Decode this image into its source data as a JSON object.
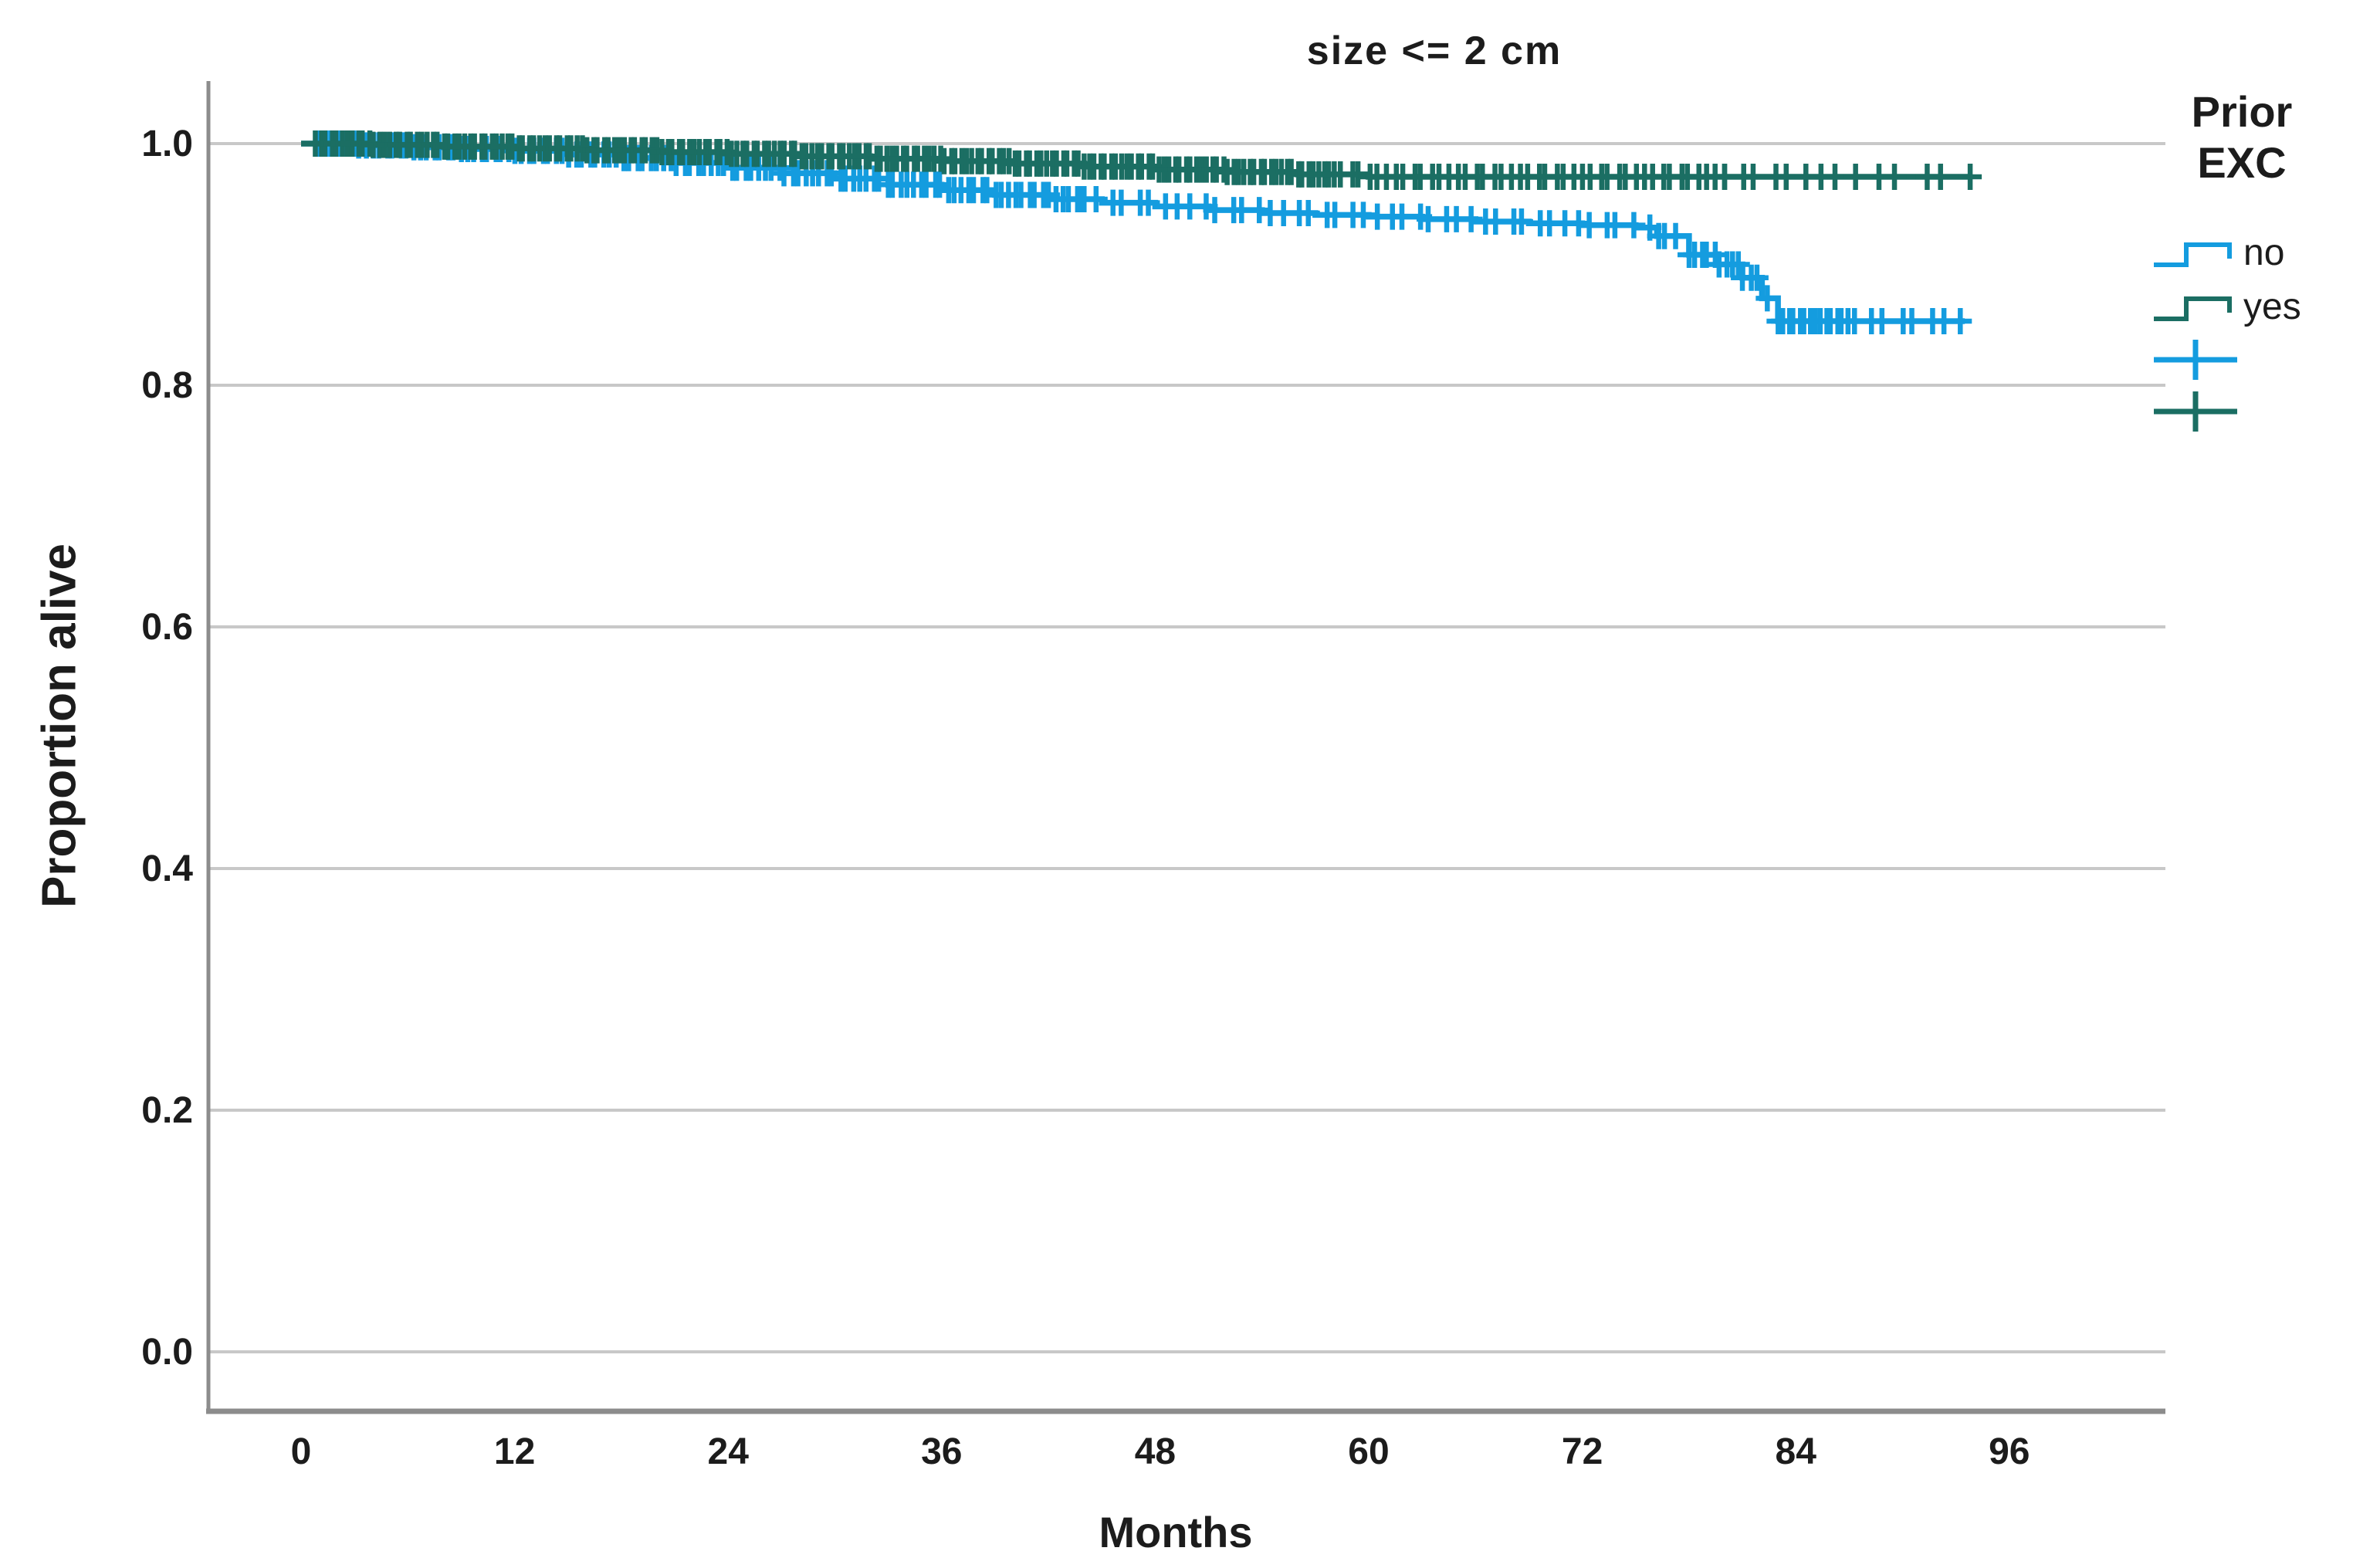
{
  "chart_data": {
    "type": "line",
    "subtype": "kaplan-meier-step-survival",
    "title": "size <= 2 cm",
    "xlabel": "Months",
    "ylabel": "Proportion alive",
    "xticks": [
      0,
      12,
      24,
      36,
      48,
      60,
      72,
      84,
      96
    ],
    "yticks": [
      "1.0",
      "0.8",
      "0.6",
      "0.4",
      "0.2",
      "0.0"
    ],
    "xlim": [
      -5,
      104
    ],
    "ylim": [
      -0.05,
      1.05
    ],
    "grid": "horizontal",
    "colors": {
      "gridline": "#c8c8c8",
      "axis": "#8c8c8c",
      "text": "#1c1c1c"
    },
    "legend": {
      "title": "Prior EXC",
      "position": "right",
      "entries": [
        {
          "label": "no",
          "color": "#149CDF"
        },
        {
          "label": "yes",
          "color": "#1B6E63"
        }
      ],
      "censored_marker": "plus"
    },
    "series": [
      {
        "name": "no",
        "color": "#149CDF",
        "end_time": 93.5,
        "steps": [
          [
            0,
            1.0
          ],
          [
            3,
            0.9985
          ],
          [
            6,
            0.997
          ],
          [
            9,
            0.9955
          ],
          [
            12,
            0.994
          ],
          [
            15,
            0.991
          ],
          [
            18,
            0.988
          ],
          [
            21,
            0.984
          ],
          [
            24,
            0.98
          ],
          [
            27,
            0.9755
          ],
          [
            30,
            0.971
          ],
          [
            33,
            0.966
          ],
          [
            36,
            0.9615
          ],
          [
            39,
            0.9575
          ],
          [
            42,
            0.954
          ],
          [
            45,
            0.951
          ],
          [
            48,
            0.948
          ],
          [
            51,
            0.945
          ],
          [
            54,
            0.9425
          ],
          [
            57,
            0.941
          ],
          [
            60,
            0.9395
          ],
          [
            63,
            0.9375
          ],
          [
            66,
            0.9355
          ],
          [
            69,
            0.934
          ],
          [
            72,
            0.9325
          ],
          [
            75,
            0.9305
          ],
          [
            76.2,
            0.9235
          ],
          [
            78,
            0.908
          ],
          [
            79.6,
            0.9
          ],
          [
            81,
            0.889
          ],
          [
            82.1,
            0.872
          ],
          [
            83,
            0.853
          ]
        ],
        "censor_clusters": [
          [
            1,
            44,
            0.38
          ],
          [
            44,
            75,
            0.75
          ],
          [
            75.8,
            77.4,
            0.45
          ],
          [
            78,
            81,
            0.35
          ],
          [
            81,
            82.4,
            0.45
          ],
          [
            83,
            87,
            0.3
          ],
          [
            87.3,
            93.5,
            0.85
          ]
        ]
      },
      {
        "name": "yes",
        "color": "#1B6E63",
        "end_time": 93.8,
        "steps": [
          [
            0,
            1.0
          ],
          [
            4,
            0.999
          ],
          [
            8,
            0.9975
          ],
          [
            12,
            0.996
          ],
          [
            16,
            0.9945
          ],
          [
            20,
            0.993
          ],
          [
            24,
            0.9915
          ],
          [
            28,
            0.9895
          ],
          [
            32,
            0.9875
          ],
          [
            36,
            0.9855
          ],
          [
            40,
            0.9835
          ],
          [
            44,
            0.981
          ],
          [
            48,
            0.9785
          ],
          [
            52,
            0.9765
          ],
          [
            56,
            0.9745
          ],
          [
            60,
            0.9725
          ]
        ],
        "censor_clusters": [
          [
            0.8,
            58,
            0.3
          ],
          [
            58,
            80,
            0.5
          ],
          [
            80,
            88,
            0.9
          ],
          [
            88.5,
            93.8,
            1.3
          ]
        ]
      }
    ]
  }
}
